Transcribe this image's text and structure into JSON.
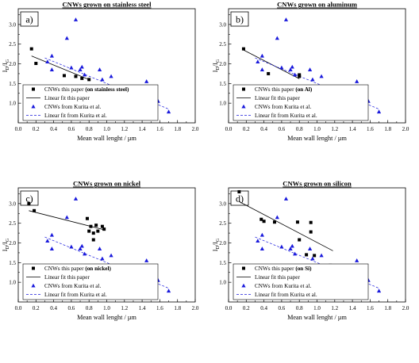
{
  "figure": {
    "panels": [
      {
        "tag": "a)",
        "title": "CNWs grown on stainless steel",
        "xlabel": "Mean wall lenght / µm",
        "legend": [
          {
            "text": "CNWs this paper ",
            "bold": "(on stainless steel)"
          },
          {
            "text": "Linear fit this paper",
            "bold": ""
          },
          {
            "text": "CNWs from Kurita et al.",
            "bold": ""
          },
          {
            "text": "Linear fit from Kurita et al.",
            "bold": ""
          }
        ]
      },
      {
        "tag": "b)",
        "title": "CNWs grown on aluminum",
        "xlabel": "Mean wall lenght / µm",
        "legend": [
          {
            "text": "CNWs this paper ",
            "bold": "(on Al)"
          },
          {
            "text": "Linear fit this paper",
            "bold": ""
          },
          {
            "text": "CNWs from Kurita et al.",
            "bold": ""
          },
          {
            "text": "Linear fit from Kurita et al.",
            "bold": ""
          }
        ]
      },
      {
        "tag": "c)",
        "title": "CNWs grown on nickel",
        "xlabel": "Mean wall lenght / µm",
        "legend": [
          {
            "text": "CNWs this paper ",
            "bold": "(on nickel)"
          },
          {
            "text": "Linear fit this paper",
            "bold": ""
          },
          {
            "text": "CNWs from Kurita et al.",
            "bold": ""
          },
          {
            "text": "Linear fit from Kurita et al.",
            "bold": ""
          }
        ]
      },
      {
        "tag": "d)",
        "title": "CNWs grown on silicon",
        "xlabel": "Mean wall lenght / µm",
        "legend": [
          {
            "text": "CNWs this paper ",
            "bold": "(on Si)"
          },
          {
            "text": "Linear fit this paper",
            "bold": ""
          },
          {
            "text": "CNWs from Kurita et al.",
            "bold": ""
          },
          {
            "text": "Linear fit from Kurita et al.",
            "bold": ""
          }
        ]
      }
    ]
  },
  "chart_data": [
    {
      "type": "scatter",
      "title": "CNWs grown on stainless steel",
      "xlabel": "Mean wall lenght / µm",
      "ylabel": "ID/IG",
      "xlim": [
        0.0,
        2.0
      ],
      "ylim": [
        0.5,
        3.4
      ],
      "xticks": [
        "0.0",
        "0.2",
        "0.4",
        "0.6",
        "0.8",
        "1.0",
        "1.2",
        "1.4",
        "1.6",
        "1.8",
        "2.0"
      ],
      "yticks": [
        "1.0",
        "1.5",
        "2.0",
        "2.5",
        "3.0"
      ],
      "grid": false,
      "legend_position": "bottom-left",
      "colors": {
        "this_paper": "#000000",
        "kurita": "#1a1adc"
      },
      "series": [
        {
          "name": "CNWs this paper (on stainless steel)",
          "marker": "square",
          "points": [
            [
              0.15,
              2.38
            ],
            [
              0.2,
              2.01
            ],
            [
              0.52,
              1.7
            ],
            [
              0.65,
              1.68
            ],
            [
              0.72,
              1.63
            ],
            [
              0.8,
              1.6
            ]
          ]
        },
        {
          "name": "Linear fit this paper",
          "line": "solid",
          "endpoints": [
            [
              0.15,
              2.2
            ],
            [
              0.8,
              1.6
            ]
          ]
        },
        {
          "name": "CNWs from Kurita et al.",
          "marker": "triangle",
          "points": [
            [
              0.33,
              2.05
            ],
            [
              0.38,
              2.2
            ],
            [
              0.38,
              1.85
            ],
            [
              0.55,
              2.65
            ],
            [
              0.6,
              1.9
            ],
            [
              0.65,
              3.12
            ],
            [
              0.7,
              1.85
            ],
            [
              0.72,
              1.92
            ],
            [
              0.75,
              1.72
            ],
            [
              0.92,
              1.85
            ],
            [
              0.95,
              1.6
            ],
            [
              1.05,
              1.68
            ],
            [
              1.17,
              1.12
            ],
            [
              1.2,
              1.1
            ],
            [
              1.3,
              1.0
            ],
            [
              1.32,
              1.23
            ],
            [
              1.45,
              1.55
            ],
            [
              1.55,
              1.0
            ],
            [
              1.58,
              1.05
            ],
            [
              1.7,
              0.78
            ]
          ]
        },
        {
          "name": "Linear fit from Kurita et al.",
          "line": "dashed",
          "endpoints": [
            [
              0.3,
              2.15
            ],
            [
              1.7,
              0.85
            ]
          ]
        }
      ]
    },
    {
      "type": "scatter",
      "title": "CNWs grown on aluminum",
      "xlabel": "Mean wall lenght / µm",
      "ylabel": "ID/IG",
      "xlim": [
        0.0,
        2.0
      ],
      "ylim": [
        0.5,
        3.4
      ],
      "xticks": [
        "0.0",
        "0.2",
        "0.4",
        "0.6",
        "0.8",
        "1.0",
        "1.2",
        "1.4",
        "1.6",
        "1.8",
        "2.0"
      ],
      "yticks": [
        "1.0",
        "1.5",
        "2.0",
        "2.5",
        "3.0"
      ],
      "grid": false,
      "legend_position": "bottom-left",
      "colors": {
        "this_paper": "#000000",
        "kurita": "#1a1adc"
      },
      "series": [
        {
          "name": "CNWs this paper (on Al)",
          "marker": "square",
          "points": [
            [
              0.17,
              2.38
            ],
            [
              0.45,
              1.75
            ],
            [
              0.8,
              1.72
            ],
            [
              0.8,
              1.68
            ]
          ]
        },
        {
          "name": "Linear fit this paper",
          "line": "solid",
          "endpoints": [
            [
              0.17,
              2.35
            ],
            [
              0.8,
              1.62
            ]
          ]
        },
        {
          "name": "CNWs from Kurita et al.",
          "marker": "triangle",
          "points": [
            [
              0.33,
              2.05
            ],
            [
              0.38,
              2.2
            ],
            [
              0.38,
              1.85
            ],
            [
              0.55,
              2.65
            ],
            [
              0.6,
              1.9
            ],
            [
              0.65,
              3.12
            ],
            [
              0.7,
              1.85
            ],
            [
              0.72,
              1.92
            ],
            [
              0.75,
              1.72
            ],
            [
              0.92,
              1.85
            ],
            [
              0.95,
              1.6
            ],
            [
              1.05,
              1.68
            ],
            [
              1.17,
              1.12
            ],
            [
              1.2,
              1.1
            ],
            [
              1.3,
              1.0
            ],
            [
              1.32,
              1.23
            ],
            [
              1.45,
              1.55
            ],
            [
              1.55,
              1.0
            ],
            [
              1.58,
              1.05
            ],
            [
              1.7,
              0.78
            ]
          ]
        },
        {
          "name": "Linear fit from Kurita et al.",
          "line": "dashed",
          "endpoints": [
            [
              0.3,
              2.15
            ],
            [
              1.7,
              0.85
            ]
          ]
        }
      ]
    },
    {
      "type": "scatter",
      "title": "CNWs grown on nickel",
      "xlabel": "Mean wall lenght / µm",
      "ylabel": "ID/IG",
      "xlim": [
        0.0,
        2.0
      ],
      "ylim": [
        0.5,
        3.4
      ],
      "xticks": [
        "0.0",
        "0.2",
        "0.4",
        "0.6",
        "0.8",
        "1.0",
        "1.2",
        "1.4",
        "1.6",
        "1.8",
        "2.0"
      ],
      "yticks": [
        "1.0",
        "1.5",
        "2.0",
        "2.5",
        "3.0"
      ],
      "grid": false,
      "legend_position": "bottom-left",
      "colors": {
        "this_paper": "#000000",
        "kurita": "#1a1adc"
      },
      "series": [
        {
          "name": "CNWs this paper (on nickel)",
          "marker": "square",
          "points": [
            [
              0.12,
              3.0
            ],
            [
              0.18,
              2.82
            ],
            [
              0.78,
              2.62
            ],
            [
              0.82,
              2.42
            ],
            [
              0.85,
              2.08
            ],
            [
              0.88,
              2.45
            ],
            [
              0.9,
              2.3
            ],
            [
              0.95,
              2.42
            ],
            [
              0.97,
              2.35
            ],
            [
              0.8,
              2.3
            ],
            [
              0.85,
              2.25
            ]
          ]
        },
        {
          "name": "Linear fit this paper",
          "line": "solid",
          "endpoints": [
            [
              0.12,
              2.82
            ],
            [
              0.98,
              2.33
            ]
          ]
        },
        {
          "name": "CNWs from Kurita et al.",
          "marker": "triangle",
          "points": [
            [
              0.33,
              2.05
            ],
            [
              0.38,
              2.2
            ],
            [
              0.38,
              1.85
            ],
            [
              0.55,
              2.65
            ],
            [
              0.6,
              1.9
            ],
            [
              0.65,
              3.12
            ],
            [
              0.7,
              1.85
            ],
            [
              0.72,
              1.92
            ],
            [
              0.75,
              1.72
            ],
            [
              0.92,
              1.85
            ],
            [
              0.95,
              1.6
            ],
            [
              1.05,
              1.68
            ],
            [
              1.17,
              1.12
            ],
            [
              1.2,
              1.1
            ],
            [
              1.3,
              1.0
            ],
            [
              1.32,
              1.23
            ],
            [
              1.45,
              1.55
            ],
            [
              1.55,
              1.0
            ],
            [
              1.58,
              1.05
            ],
            [
              1.7,
              0.78
            ]
          ]
        },
        {
          "name": "Linear fit from Kurita et al.",
          "line": "dashed",
          "endpoints": [
            [
              0.3,
              2.15
            ],
            [
              1.7,
              0.85
            ]
          ]
        }
      ]
    },
    {
      "type": "scatter",
      "title": "CNWs grown on silicon",
      "xlabel": "Mean wall lenght / µm",
      "ylabel": "ID/IG",
      "xlim": [
        0.0,
        2.0
      ],
      "ylim": [
        0.5,
        3.4
      ],
      "xticks": [
        "0.0",
        "0.2",
        "0.4",
        "0.6",
        "0.8",
        "1.0",
        "1.2",
        "1.4",
        "1.6",
        "1.8",
        "2.0"
      ],
      "yticks": [
        "1.0",
        "1.5",
        "2.0",
        "2.5",
        "3.0"
      ],
      "grid": false,
      "legend_position": "bottom-left",
      "colors": {
        "this_paper": "#000000",
        "kurita": "#1a1adc"
      },
      "series": [
        {
          "name": "CNWs this paper (on Si)",
          "marker": "square",
          "points": [
            [
              0.12,
              3.3
            ],
            [
              0.37,
              2.6
            ],
            [
              0.4,
              2.55
            ],
            [
              0.52,
              2.53
            ],
            [
              0.78,
              2.53
            ],
            [
              0.8,
              2.08
            ],
            [
              0.88,
              1.7
            ],
            [
              0.93,
              2.52
            ],
            [
              0.93,
              2.28
            ],
            [
              0.97,
              1.68
            ],
            [
              1.15,
              1.43
            ]
          ]
        },
        {
          "name": "Linear fit this paper",
          "line": "solid",
          "endpoints": [
            [
              0.12,
              3.05
            ],
            [
              1.18,
              1.8
            ]
          ]
        },
        {
          "name": "CNWs from Kurita et al.",
          "marker": "triangle",
          "points": [
            [
              0.33,
              2.05
            ],
            [
              0.38,
              2.2
            ],
            [
              0.38,
              1.85
            ],
            [
              0.55,
              2.65
            ],
            [
              0.6,
              1.9
            ],
            [
              0.65,
              3.12
            ],
            [
              0.7,
              1.85
            ],
            [
              0.72,
              1.92
            ],
            [
              0.75,
              1.72
            ],
            [
              0.92,
              1.85
            ],
            [
              0.95,
              1.6
            ],
            [
              1.05,
              1.68
            ],
            [
              1.17,
              1.12
            ],
            [
              1.2,
              1.1
            ],
            [
              1.3,
              1.0
            ],
            [
              1.32,
              1.23
            ],
            [
              1.45,
              1.55
            ],
            [
              1.55,
              1.0
            ],
            [
              1.58,
              1.05
            ],
            [
              1.7,
              0.78
            ]
          ]
        },
        {
          "name": "Linear fit from Kurita et al.",
          "line": "dashed",
          "endpoints": [
            [
              0.3,
              2.15
            ],
            [
              1.7,
              0.85
            ]
          ]
        }
      ]
    }
  ]
}
